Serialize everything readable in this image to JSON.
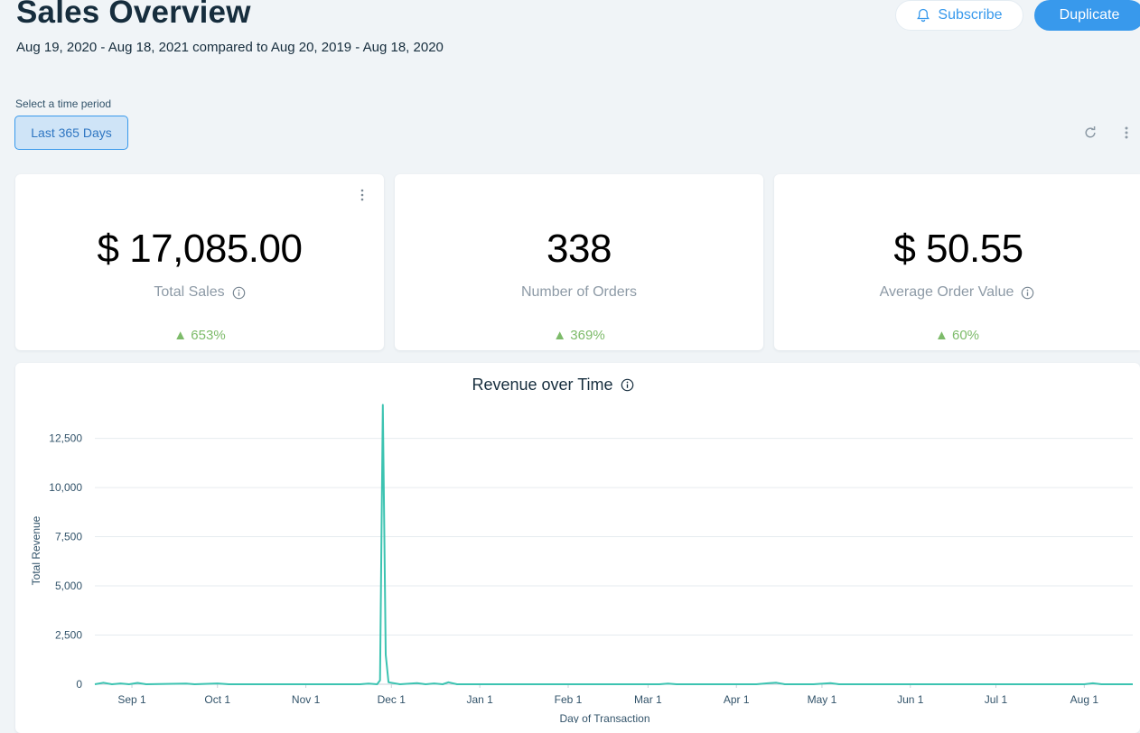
{
  "header": {
    "title": "Sales Overview",
    "date_range": "Aug 19, 2020 - Aug 18, 2021 compared to Aug 20, 2019 - Aug 18, 2020",
    "subscribe_label": "Subscribe",
    "duplicate_label": "Duplicate"
  },
  "filters": {
    "period_label": "Select a time period",
    "period_value": "Last 365 Days"
  },
  "colors": {
    "accent": "#3899ec",
    "positive": "#7dbb6a",
    "line": "#3cc3b1"
  },
  "cards": [
    {
      "value": "$ 17,085.00",
      "label": "Total Sales",
      "change": "▲ 653%",
      "has_info": true
    },
    {
      "value": "338",
      "label": "Number of Orders",
      "change": "▲ 369%",
      "has_info": false
    },
    {
      "value": "$ 50.55",
      "label": "Average Order Value",
      "change": "▲ 60%",
      "has_info": true
    }
  ],
  "chart": {
    "title": "Revenue over Time"
  },
  "chart_data": {
    "type": "line",
    "title": "Revenue over Time",
    "xlabel": "Day of Transaction",
    "ylabel": "Total Revenue",
    "ylim": [
      0,
      14500
    ],
    "yticks": [
      0,
      2500,
      5000,
      7500,
      10000,
      12500
    ],
    "ytick_labels": [
      "0",
      "2,500",
      "5,000",
      "7,500",
      "10,000",
      "12,500"
    ],
    "xlim": [
      "2020-08-19",
      "2021-08-18"
    ],
    "xticks": [
      "2020-09-01",
      "2020-10-01",
      "2020-11-01",
      "2020-12-01",
      "2021-01-01",
      "2021-02-01",
      "2021-03-01",
      "2021-04-01",
      "2021-05-01",
      "2021-06-01",
      "2021-07-01",
      "2021-08-01"
    ],
    "xtick_labels": [
      "Sep 1",
      "Oct 1",
      "Nov 1",
      "Dec 1",
      "Jan 1",
      "Feb 1",
      "Mar 1",
      "Apr 1",
      "May 1",
      "Jun 1",
      "Jul 1",
      "Aug 1"
    ],
    "grid": true,
    "series": [
      {
        "values": [
          [
            "2020-08-19",
            0
          ],
          [
            "2020-08-22",
            80
          ],
          [
            "2020-08-25",
            0
          ],
          [
            "2020-08-28",
            40
          ],
          [
            "2020-08-31",
            0
          ],
          [
            "2020-09-03",
            70
          ],
          [
            "2020-09-06",
            0
          ],
          [
            "2020-09-20",
            30
          ],
          [
            "2020-09-23",
            0
          ],
          [
            "2020-10-01",
            40
          ],
          [
            "2020-10-05",
            0
          ],
          [
            "2020-11-20",
            0
          ],
          [
            "2020-11-23",
            30
          ],
          [
            "2020-11-26",
            0
          ],
          [
            "2020-11-27",
            200
          ],
          [
            "2020-11-28",
            14200
          ],
          [
            "2020-11-29",
            1500
          ],
          [
            "2020-11-30",
            100
          ],
          [
            "2020-12-04",
            0
          ],
          [
            "2020-12-10",
            60
          ],
          [
            "2020-12-13",
            0
          ],
          [
            "2020-12-16",
            40
          ],
          [
            "2020-12-19",
            0
          ],
          [
            "2020-12-21",
            100
          ],
          [
            "2020-12-24",
            0
          ],
          [
            "2021-01-10",
            0
          ],
          [
            "2021-03-05",
            0
          ],
          [
            "2021-03-08",
            30
          ],
          [
            "2021-03-11",
            0
          ],
          [
            "2021-04-08",
            0
          ],
          [
            "2021-04-12",
            50
          ],
          [
            "2021-04-15",
            80
          ],
          [
            "2021-04-18",
            0
          ],
          [
            "2021-04-28",
            0
          ],
          [
            "2021-05-04",
            60
          ],
          [
            "2021-05-07",
            0
          ],
          [
            "2021-05-15",
            0
          ],
          [
            "2021-08-01",
            0
          ],
          [
            "2021-08-04",
            50
          ],
          [
            "2021-08-07",
            0
          ],
          [
            "2021-08-18",
            0
          ]
        ]
      }
    ]
  }
}
